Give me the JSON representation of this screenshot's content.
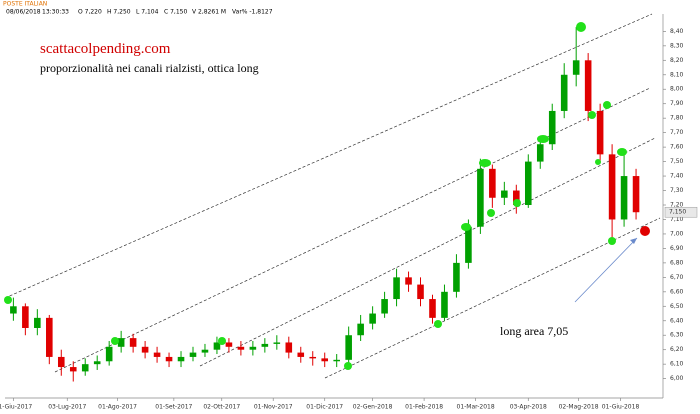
{
  "header": {
    "symbol": "POSTE ITALIAN",
    "date": "08/06/2018",
    "time": "13:30:33",
    "open": "O 7,220",
    "high": "H 7,250",
    "low": "L 7,104",
    "close": "C 7,150",
    "volume": "V 2,8261 M",
    "change": "Var% -1,8127"
  },
  "chart_data": {
    "type": "candlestick",
    "title": "scattacolpending.com",
    "subtitle": "proporzionalità nei canali rialzisti, ottica long",
    "annotation": "long area 7,05",
    "last_price_label": "7,150",
    "up_color": "#00a000",
    "down_color": "#e00000",
    "open": [
      6.45,
      6.5,
      6.35,
      6.42,
      6.15,
      6.08,
      6.05,
      6.1,
      6.12,
      6.22,
      6.28,
      6.22,
      6.18,
      6.15,
      6.12,
      6.15,
      6.18,
      6.2,
      6.25,
      6.22,
      6.2,
      6.22,
      6.24,
      6.25,
      6.18,
      6.15,
      6.14,
      6.12,
      6.13,
      6.3,
      6.38,
      6.45,
      6.55,
      6.7,
      6.65,
      6.55,
      6.42,
      6.6,
      6.8,
      7.05,
      7.45,
      7.25,
      7.3,
      7.2,
      7.5,
      7.62,
      7.85,
      8.1,
      8.2,
      7.85,
      7.55,
      7.1,
      7.4
    ],
    "high": [
      6.56,
      6.52,
      6.48,
      6.44,
      6.2,
      6.12,
      6.14,
      6.16,
      6.26,
      6.33,
      6.31,
      6.26,
      6.22,
      6.18,
      6.19,
      6.22,
      6.24,
      6.29,
      6.28,
      6.26,
      6.26,
      6.28,
      6.3,
      6.29,
      6.22,
      6.19,
      6.18,
      6.17,
      6.36,
      6.44,
      6.5,
      6.6,
      6.76,
      6.74,
      6.7,
      6.58,
      6.65,
      6.86,
      7.1,
      7.52,
      7.48,
      7.36,
      7.34,
      7.55,
      7.68,
      7.9,
      8.18,
      8.43,
      8.25,
      7.9,
      7.62,
      7.58,
      7.45
    ],
    "low": [
      6.4,
      6.3,
      6.3,
      6.1,
      6.02,
      5.98,
      6.02,
      6.06,
      6.09,
      6.18,
      6.18,
      6.14,
      6.11,
      6.08,
      6.08,
      6.12,
      6.15,
      6.17,
      6.18,
      6.16,
      6.16,
      6.18,
      6.2,
      6.14,
      6.11,
      6.09,
      6.08,
      6.08,
      6.1,
      6.26,
      6.34,
      6.42,
      6.5,
      6.6,
      6.5,
      6.38,
      6.4,
      6.56,
      6.76,
      7.0,
      7.18,
      7.2,
      7.14,
      7.18,
      7.45,
      7.58,
      7.8,
      8.02,
      7.78,
      7.5,
      6.97,
      7.05,
      7.1
    ],
    "close": [
      6.5,
      6.35,
      6.42,
      6.15,
      6.08,
      6.05,
      6.1,
      6.12,
      6.22,
      6.28,
      6.22,
      6.18,
      6.15,
      6.12,
      6.15,
      6.18,
      6.2,
      6.25,
      6.22,
      6.2,
      6.22,
      6.24,
      6.25,
      6.18,
      6.15,
      6.14,
      6.12,
      6.13,
      6.3,
      6.38,
      6.45,
      6.55,
      6.7,
      6.65,
      6.55,
      6.42,
      6.6,
      6.8,
      7.05,
      7.45,
      7.25,
      7.3,
      7.2,
      7.5,
      7.62,
      7.85,
      8.1,
      8.2,
      7.85,
      7.55,
      7.1,
      7.4,
      7.15
    ],
    "xlim": [
      -0.7,
      54
    ],
    "xticks": [
      {
        "value": 0,
        "label": "01-Giu-2017"
      },
      {
        "value": 4.5,
        "label": "03-Lug-2017"
      },
      {
        "value": 8.7,
        "label": "01-Ago-2017"
      },
      {
        "value": 13.4,
        "label": "01-Set-2017"
      },
      {
        "value": 17.4,
        "label": "02-Ott-2017"
      },
      {
        "value": 21.7,
        "label": "01-Nov-2017"
      },
      {
        "value": 26.0,
        "label": "01-Dic-2017"
      },
      {
        "value": 30.0,
        "label": "02-Gen-2018"
      },
      {
        "value": 34.3,
        "label": "01-Feb-2018"
      },
      {
        "value": 38.6,
        "label": "01-Mar-2018"
      },
      {
        "value": 43.0,
        "label": "03-Apr-2018"
      },
      {
        "value": 47.2,
        "label": "02-Mag-2018"
      },
      {
        "value": 50.7,
        "label": "01-Giu-2018"
      }
    ],
    "ylim": [
      5.88,
      8.52
    ],
    "yticks": [
      {
        "value": 6.0,
        "label": "6,00"
      },
      {
        "value": 6.1,
        "label": "6,10"
      },
      {
        "value": 6.2,
        "label": "6,20"
      },
      {
        "value": 6.3,
        "label": "6,30"
      },
      {
        "value": 6.4,
        "label": "6,40"
      },
      {
        "value": 6.5,
        "label": "6,50"
      },
      {
        "value": 6.6,
        "label": "6,60"
      },
      {
        "value": 6.7,
        "label": "6,70"
      },
      {
        "value": 6.8,
        "label": "6,80"
      },
      {
        "value": 6.9,
        "label": "6,90"
      },
      {
        "value": 7.0,
        "label": "7,00"
      },
      {
        "value": 7.1,
        "label": "7,10"
      },
      {
        "value": 7.2,
        "label": "7,20"
      },
      {
        "value": 7.3,
        "label": "7,30"
      },
      {
        "value": 7.4,
        "label": "7,40"
      },
      {
        "value": 7.5,
        "label": "7,50"
      },
      {
        "value": 7.6,
        "label": "7,60"
      },
      {
        "value": 7.7,
        "label": "7,70"
      },
      {
        "value": 7.8,
        "label": "7,80"
      },
      {
        "value": 7.9,
        "label": "7,90"
      },
      {
        "value": 8.0,
        "label": "8,00"
      },
      {
        "value": 8.1,
        "label": "8,10"
      },
      {
        "value": 8.2,
        "label": "8,20"
      },
      {
        "value": 8.3,
        "label": "8,30"
      },
      {
        "value": 8.4,
        "label": "8,40"
      }
    ]
  }
}
